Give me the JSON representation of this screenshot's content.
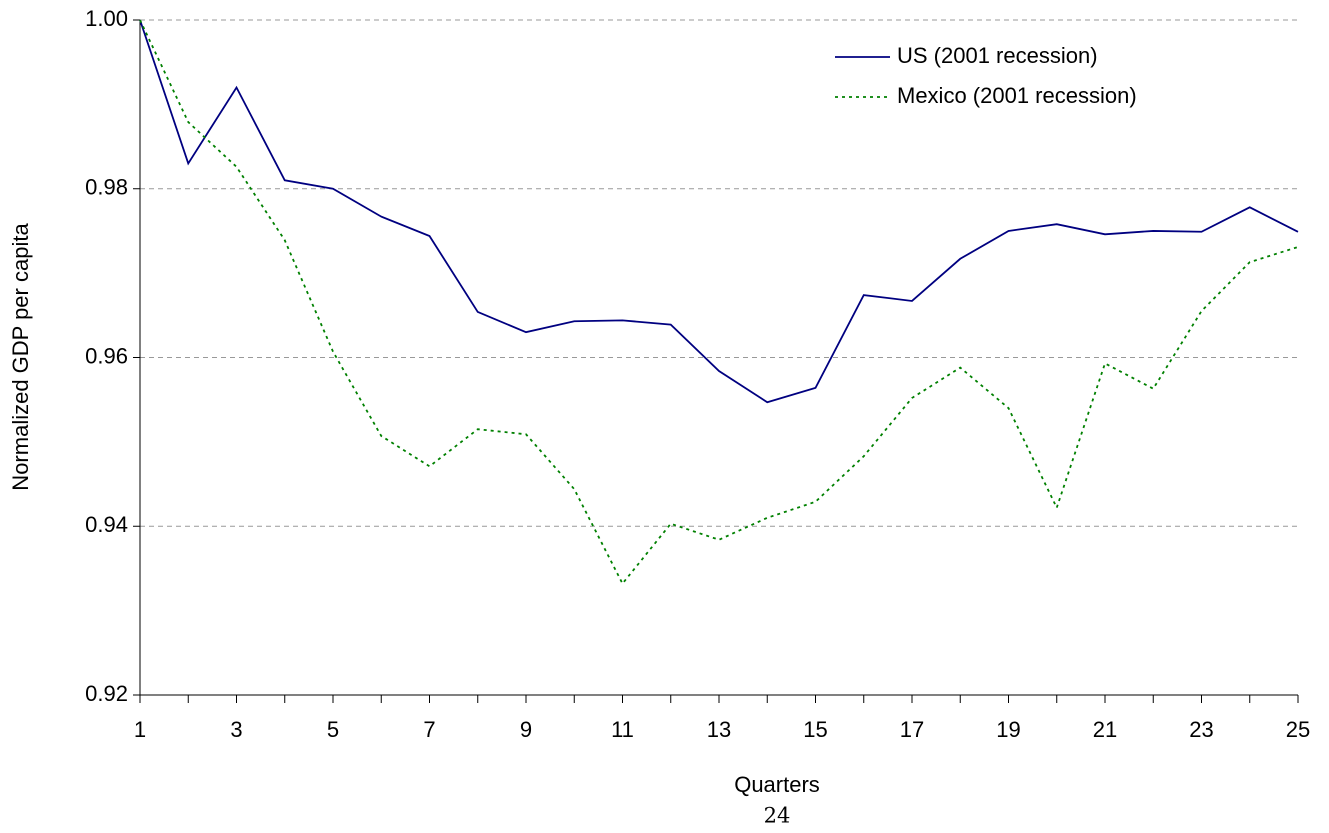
{
  "chart_data": {
    "type": "line",
    "x_label": "Quarters",
    "y_label": "Normalized GDP per capita",
    "x": [
      1,
      2,
      3,
      4,
      5,
      6,
      7,
      8,
      9,
      10,
      11,
      12,
      13,
      14,
      15,
      16,
      17,
      18,
      19,
      20,
      21,
      22,
      23,
      24,
      25
    ],
    "xlim": [
      1,
      25
    ],
    "xticks": [
      1,
      3,
      5,
      7,
      9,
      11,
      13,
      15,
      17,
      19,
      21,
      23,
      25
    ],
    "ylim": [
      0.92,
      1.0
    ],
    "yticks": [
      0.92,
      0.94,
      0.96,
      0.98,
      {
        "value": 1.0,
        "label": "1.00"
      }
    ],
    "grid": true,
    "legend": "top-right",
    "series": [
      {
        "name": "US (2001 recession)",
        "color": "#000080",
        "dash": "solid",
        "values": [
          1.0,
          0.983,
          0.992,
          0.981,
          0.98,
          0.9767,
          0.9744,
          0.9654,
          0.963,
          0.9643,
          0.9644,
          0.9639,
          0.9584,
          0.9547,
          0.9564,
          0.9674,
          0.9667,
          0.9717,
          0.975,
          0.9758,
          0.9746,
          0.975,
          0.9749,
          0.9778,
          0.9749
        ]
      },
      {
        "name": "Mexico (2001 recession)",
        "color": "#008000",
        "dash": "dotted",
        "values": [
          1.0,
          0.9879,
          0.9826,
          0.9739,
          0.9607,
          0.9507,
          0.9471,
          0.9515,
          0.9509,
          0.9444,
          0.9332,
          0.9403,
          0.9384,
          0.941,
          0.9429,
          0.9483,
          0.9552,
          0.9588,
          0.954,
          0.9422,
          0.9593,
          0.9563,
          0.9655,
          0.9713,
          0.9731
        ]
      }
    ]
  },
  "page_number": "24"
}
